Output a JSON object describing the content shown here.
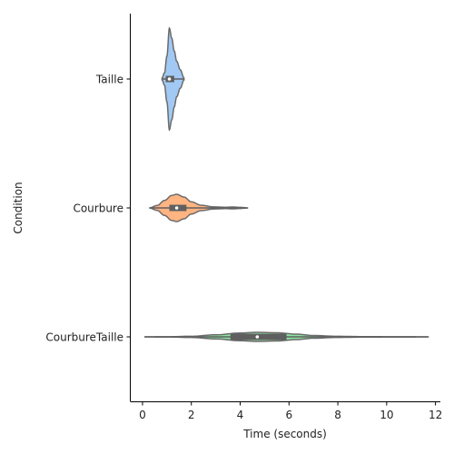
{
  "chart_data": {
    "type": "violin",
    "orientation": "horizontal",
    "xlabel": "Time (seconds)",
    "ylabel": "Condition",
    "xlim": [
      -0.5,
      12.2
    ],
    "xticks": [
      "0",
      "2",
      "4",
      "6",
      "8",
      "10",
      "12"
    ],
    "categories": [
      "Taille",
      "Courbure",
      "CourbureTaille"
    ],
    "colors": {
      "Taille": "#a1c9f4",
      "Courbure": "#ffb482",
      "CourbureTaille": "#8de5a1",
      "outline": "#6b6b6b",
      "box": "#5f5f5f"
    },
    "series": [
      {
        "name": "Taille",
        "min": 0.8,
        "q1": 0.95,
        "median": 1.1,
        "q3": 1.3,
        "max": 1.7,
        "density": [
          [
            0.8,
            0.02
          ],
          [
            0.9,
            0.12
          ],
          [
            1.0,
            0.45
          ],
          [
            1.1,
            1.0
          ],
          [
            1.2,
            0.8
          ],
          [
            1.3,
            0.55
          ],
          [
            1.4,
            0.35
          ],
          [
            1.55,
            0.18
          ],
          [
            1.7,
            0.02
          ]
        ]
      },
      {
        "name": "Courbure",
        "min": 0.3,
        "q1": 1.1,
        "median": 1.4,
        "q3": 1.8,
        "max": 4.3,
        "density": [
          [
            0.3,
            0.01
          ],
          [
            0.6,
            0.18
          ],
          [
            0.9,
            0.55
          ],
          [
            1.2,
            0.92
          ],
          [
            1.4,
            1.0
          ],
          [
            1.7,
            0.8
          ],
          [
            2.0,
            0.45
          ],
          [
            2.4,
            0.2
          ],
          [
            2.9,
            0.08
          ],
          [
            3.4,
            0.05
          ],
          [
            3.7,
            0.07
          ],
          [
            4.0,
            0.04
          ],
          [
            4.3,
            0.005
          ]
        ]
      },
      {
        "name": "CourbureTaille",
        "min": 0.1,
        "q1": 3.6,
        "median": 4.7,
        "q3": 5.9,
        "max": 11.7,
        "density": [
          [
            0.1,
            0.003
          ],
          [
            1.0,
            0.03
          ],
          [
            2.0,
            0.13
          ],
          [
            3.0,
            0.45
          ],
          [
            4.0,
            0.85
          ],
          [
            4.7,
            1.0
          ],
          [
            5.5,
            0.9
          ],
          [
            6.3,
            0.6
          ],
          [
            7.0,
            0.3
          ],
          [
            8.0,
            0.12
          ],
          [
            9.0,
            0.06
          ],
          [
            10.0,
            0.035
          ],
          [
            11.0,
            0.015
          ],
          [
            11.7,
            0.003
          ]
        ]
      }
    ]
  }
}
